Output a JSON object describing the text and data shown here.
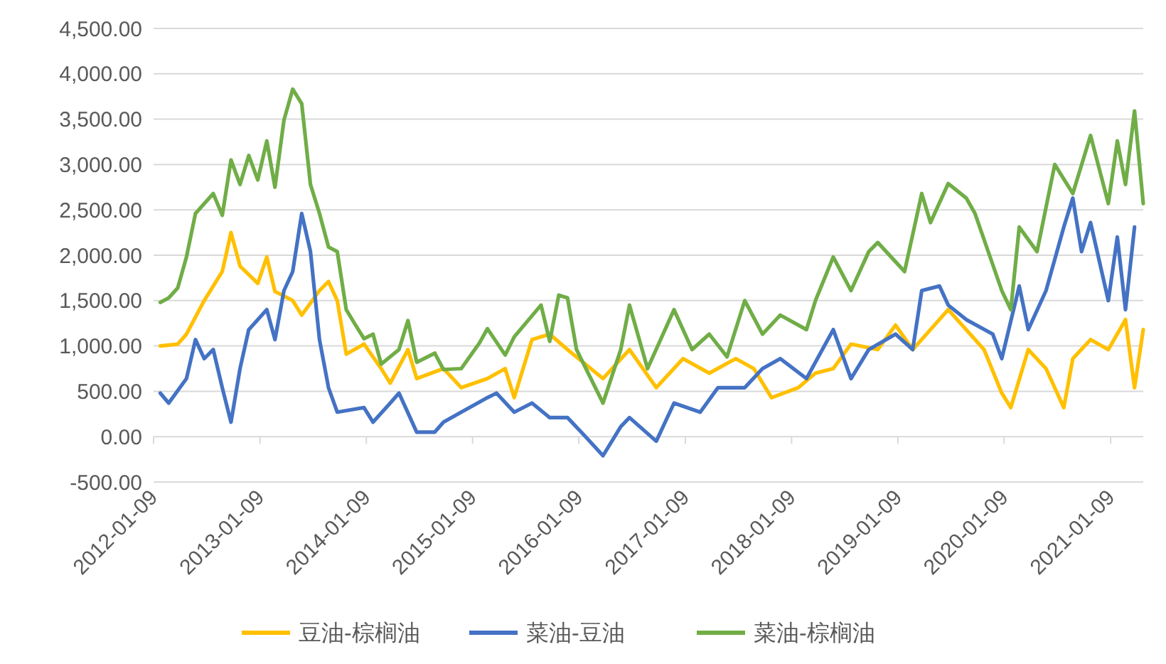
{
  "chart_data": {
    "type": "line",
    "xlim": [
      "2012-01-09",
      "2021-05-01"
    ],
    "ylim": [
      -500,
      4500
    ],
    "xticks": [
      "2012-01-09",
      "2013-01-09",
      "2014-01-09",
      "2015-01-09",
      "2016-01-09",
      "2017-01-09",
      "2018-01-09",
      "2019-01-09",
      "2020-01-09",
      "2021-01-09"
    ],
    "yticks": [
      {
        "value": -500,
        "label": "-500.00"
      },
      {
        "value": 0,
        "label": "0.00"
      },
      {
        "value": 500,
        "label": "500.00"
      },
      {
        "value": 1000,
        "label": "1,000.00"
      },
      {
        "value": 1500,
        "label": "1,500.00"
      },
      {
        "value": 2000,
        "label": "2,000.00"
      },
      {
        "value": 2500,
        "label": "2,500.00"
      },
      {
        "value": 3000,
        "label": "3,000.00"
      },
      {
        "value": 3500,
        "label": "3,500.00"
      },
      {
        "value": 4000,
        "label": "4,000.00"
      },
      {
        "value": 4500,
        "label": "4,500.00"
      }
    ],
    "grid": "y",
    "legend": "bottom",
    "marker": "none",
    "line_style": "solid",
    "series": [
      {
        "name": "豆油-棕榈油",
        "color": "#ffc000",
        "x": [
          "2012-02",
          "2012-04",
          "2012-05",
          "2012-07",
          "2012-09",
          "2012-10",
          "2012-11",
          "2013-01",
          "2013-02",
          "2013-03",
          "2013-05",
          "2013-06",
          "2013-08",
          "2013-09",
          "2013-10",
          "2013-11",
          "2014-01",
          "2014-03",
          "2014-04",
          "2014-06",
          "2014-07",
          "2014-10",
          "2014-12",
          "2015-03",
          "2015-05",
          "2015-06",
          "2015-08",
          "2015-10",
          "2015-12",
          "2016-04",
          "2016-07",
          "2016-10",
          "2017-01",
          "2017-04",
          "2017-07",
          "2017-09",
          "2017-11",
          "2018-02",
          "2018-04",
          "2018-06",
          "2018-08",
          "2018-11",
          "2019-01",
          "2019-03",
          "2019-05",
          "2019-07",
          "2019-11",
          "2020-01",
          "2020-02",
          "2020-04",
          "2020-06",
          "2020-08",
          "2020-09",
          "2020-11",
          "2021-01",
          "2021-03",
          "2021-04",
          "2021-05"
        ],
        "values": [
          1000,
          1020,
          1130,
          1500,
          1820,
          2250,
          1880,
          1690,
          1980,
          1600,
          1500,
          1340,
          1610,
          1710,
          1500,
          910,
          1020,
          750,
          590,
          960,
          640,
          750,
          540,
          640,
          750,
          430,
          1070,
          1130,
          960,
          640,
          960,
          540,
          860,
          700,
          860,
          750,
          430,
          540,
          700,
          750,
          1020,
          960,
          1230,
          960,
          1180,
          1400,
          960,
          480,
          320,
          960,
          750,
          320,
          860,
          1070,
          960,
          1290,
          540,
          1180
        ]
      },
      {
        "name": "菜油-豆油",
        "color": "#4472c4",
        "x": [
          "2012-02",
          "2012-03",
          "2012-05",
          "2012-06",
          "2012-07",
          "2012-08",
          "2012-09",
          "2012-10",
          "2012-11",
          "2012-12",
          "2013-02",
          "2013-03",
          "2013-04",
          "2013-05",
          "2013-06",
          "2013-07",
          "2013-08",
          "2013-09",
          "2013-10",
          "2014-01",
          "2014-02",
          "2014-04",
          "2014-05",
          "2014-07",
          "2014-09",
          "2014-10",
          "2014-12",
          "2015-03",
          "2015-04",
          "2015-06",
          "2015-08",
          "2015-10",
          "2015-12",
          "2016-02",
          "2016-04",
          "2016-06",
          "2016-07",
          "2016-10",
          "2016-12",
          "2017-03",
          "2017-05",
          "2017-08",
          "2017-10",
          "2017-12",
          "2018-03",
          "2018-06",
          "2018-08",
          "2018-10",
          "2019-01",
          "2019-03",
          "2019-04",
          "2019-06",
          "2019-07",
          "2019-09",
          "2019-12",
          "2020-01",
          "2020-03",
          "2020-04",
          "2020-06",
          "2020-08",
          "2020-09",
          "2020-10",
          "2020-11",
          "2021-01",
          "2021-02",
          "2021-03",
          "2021-04"
        ],
        "values": [
          480,
          370,
          640,
          1070,
          860,
          960,
          540,
          160,
          750,
          1180,
          1400,
          1070,
          1610,
          1820,
          2460,
          2040,
          1070,
          540,
          270,
          320,
          160,
          370,
          480,
          50,
          50,
          160,
          270,
          430,
          480,
          270,
          370,
          210,
          210,
          0,
          -210,
          110,
          210,
          -50,
          370,
          270,
          540,
          540,
          750,
          860,
          640,
          1180,
          640,
          960,
          1130,
          960,
          1610,
          1660,
          1450,
          1290,
          1130,
          860,
          1660,
          1180,
          1610,
          2310,
          2630,
          2040,
          2360,
          1500,
          2200,
          1400,
          2310
        ]
      },
      {
        "name": "菜油-棕榈油",
        "color": "#70ad47",
        "x": [
          "2012-02",
          "2012-03",
          "2012-04",
          "2012-05",
          "2012-06",
          "2012-08",
          "2012-09",
          "2012-10",
          "2012-11",
          "2012-12",
          "2013-01",
          "2013-02",
          "2013-03",
          "2013-04",
          "2013-05",
          "2013-06",
          "2013-07",
          "2013-08",
          "2013-09",
          "2013-10",
          "2013-11",
          "2013-12",
          "2014-01",
          "2014-02",
          "2014-03",
          "2014-05",
          "2014-06",
          "2014-07",
          "2014-09",
          "2014-10",
          "2014-12",
          "2015-02",
          "2015-03",
          "2015-05",
          "2015-06",
          "2015-09",
          "2015-10",
          "2015-11",
          "2015-12",
          "2016-01",
          "2016-04",
          "2016-06",
          "2016-07",
          "2016-09",
          "2016-12",
          "2017-02",
          "2017-04",
          "2017-06",
          "2017-08",
          "2017-10",
          "2017-12",
          "2018-03",
          "2018-04",
          "2018-06",
          "2018-08",
          "2018-10",
          "2018-11",
          "2019-02",
          "2019-04",
          "2019-05",
          "2019-07",
          "2019-09",
          "2019-10",
          "2020-01",
          "2020-02",
          "2020-03",
          "2020-05",
          "2020-07",
          "2020-09",
          "2020-11",
          "2021-01",
          "2021-02",
          "2021-03",
          "2021-04",
          "2021-05"
        ],
        "values": [
          1480,
          1530,
          1640,
          1980,
          2460,
          2680,
          2440,
          3050,
          2780,
          3100,
          2830,
          3260,
          2750,
          3490,
          3830,
          3670,
          2780,
          2460,
          2090,
          2040,
          1400,
          1240,
          1080,
          1130,
          800,
          960,
          1280,
          820,
          920,
          740,
          750,
          1030,
          1190,
          900,
          1100,
          1450,
          1050,
          1560,
          1530,
          960,
          370,
          960,
          1450,
          750,
          1400,
          960,
          1130,
          880,
          1500,
          1130,
          1340,
          1180,
          1500,
          1980,
          1610,
          2040,
          2140,
          1820,
          2680,
          2360,
          2790,
          2630,
          2460,
          1610,
          1400,
          2310,
          2040,
          3000,
          2680,
          3320,
          2570,
          3260,
          2780,
          3590,
          2570
        ]
      }
    ]
  }
}
